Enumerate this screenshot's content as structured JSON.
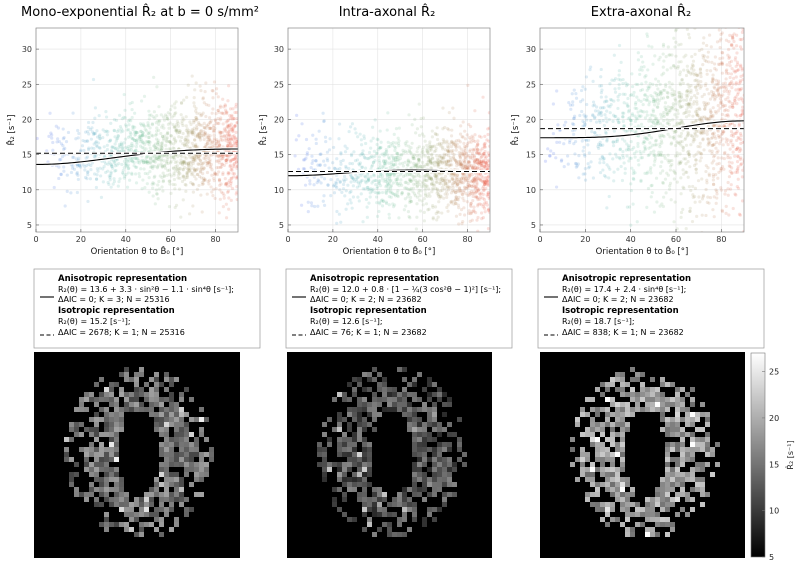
{
  "chart_data": [
    {
      "type": "scatter",
      "title": "Mono-exponential R̂₂ at b = 0 s/mm²",
      "xlabel": "Orientation θ to B̂₀ [°]",
      "ylabel": "R̂₂ [s⁻¹]",
      "xlim": [
        0,
        90
      ],
      "ylim": [
        4,
        33
      ],
      "xticks": [
        0,
        20,
        40,
        60,
        80
      ],
      "yticks": [
        5,
        10,
        15,
        20,
        25,
        30
      ],
      "grid": true,
      "cloud": {
        "mean": 14.7,
        "spread": 2.6,
        "slope": 0.018,
        "max_spread_growth": 1.4
      },
      "series": [
        {
          "name": "Anisotropic representation",
          "style": "solid",
          "fit": {
            "type": "anisotropic_mono",
            "a": 13.6,
            "b": 3.3,
            "c": -1.1
          }
        },
        {
          "name": "Isotropic representation",
          "style": "dashed",
          "fit": {
            "type": "constant",
            "value": 15.2
          }
        }
      ],
      "legend": {
        "placement": "below",
        "aniso_title": "Anisotropic representation",
        "aniso_eq": "R₂(θ) = 13.6 + 3.3 · sin²θ − 1.1 · sin⁴θ [s⁻¹];",
        "aniso_stats": "ΔAIC = 0;      K = 3;  N = 25316",
        "iso_title": "Isotropic representation",
        "iso_eq": "R₂(θ) = 15.2 [s⁻¹];",
        "iso_stats": "ΔAIC = 2678;      K = 1;  N = 25316"
      }
    },
    {
      "type": "scatter",
      "title": "Intra-axonal R̂₂",
      "xlabel": "Orientation θ to B̂₀ [°]",
      "ylabel": "R̂₂ [s⁻¹]",
      "xlim": [
        0,
        90
      ],
      "ylim": [
        4,
        33
      ],
      "xticks": [
        0,
        20,
        40,
        60,
        80
      ],
      "yticks": [
        5,
        10,
        15,
        20,
        25,
        30
      ],
      "grid": true,
      "cloud": {
        "mean": 12.5,
        "spread": 3.0,
        "slope": 0.0,
        "max_spread_growth": 1.1
      },
      "series": [
        {
          "name": "Anisotropic representation",
          "style": "solid",
          "fit": {
            "type": "anisotropic_intra",
            "a": 12.0,
            "b": 0.8
          }
        },
        {
          "name": "Isotropic representation",
          "style": "dashed",
          "fit": {
            "type": "constant",
            "value": 12.6
          }
        }
      ],
      "legend": {
        "placement": "below",
        "aniso_title": "Anisotropic representation",
        "aniso_eq": "R₂(θ) = 12.0 + 0.8 · [1 − ¼(3 cos²θ − 1)²] [s⁻¹];",
        "aniso_stats": "ΔAIC = 0;      K = 2;  N = 23682",
        "iso_title": "Isotropic representation",
        "iso_eq": "R₂(θ) = 12.6 [s⁻¹];",
        "iso_stats": "ΔAIC = 76;      K = 1;  N = 23682"
      }
    },
    {
      "type": "scatter",
      "title": "Extra-axonal R̂₂",
      "xlabel": "Orientation θ to B̂₀ [°]",
      "ylabel": "R̂₂ [s⁻¹]",
      "xlim": [
        0,
        90
      ],
      "ylim": [
        4,
        33
      ],
      "xticks": [
        0,
        20,
        40,
        60,
        80
      ],
      "yticks": [
        5,
        10,
        15,
        20,
        25,
        30
      ],
      "grid": true,
      "cloud": {
        "mean": 18.0,
        "spread": 4.2,
        "slope": 0.03,
        "max_spread_growth": 1.8
      },
      "series": [
        {
          "name": "Anisotropic representation",
          "style": "solid",
          "fit": {
            "type": "anisotropic_extra",
            "a": 17.4,
            "b": 2.4
          }
        },
        {
          "name": "Isotropic representation",
          "style": "dashed",
          "fit": {
            "type": "constant",
            "value": 18.7
          }
        }
      ],
      "legend": {
        "placement": "below",
        "aniso_title": "Anisotropic representation",
        "aniso_eq": "R₂(θ) = 17.4 + 2.4 · sin⁴θ [s⁻¹];",
        "aniso_stats": "ΔAIC = 0;      K = 2;  N = 23682",
        "iso_title": "Isotropic representation",
        "iso_eq": "R₂(θ) = 18.7 [s⁻¹];",
        "iso_stats": "ΔAIC = 838;      K = 1;  N = 23682"
      }
    }
  ],
  "maps": {
    "colormap": "gray",
    "mean_values": [
      15.0,
      12.5,
      18.5
    ]
  },
  "colorbar": {
    "label": "R̂₂ [s⁻¹]",
    "range": [
      5,
      27
    ],
    "ticks": [
      5,
      10,
      15,
      20,
      25
    ]
  }
}
